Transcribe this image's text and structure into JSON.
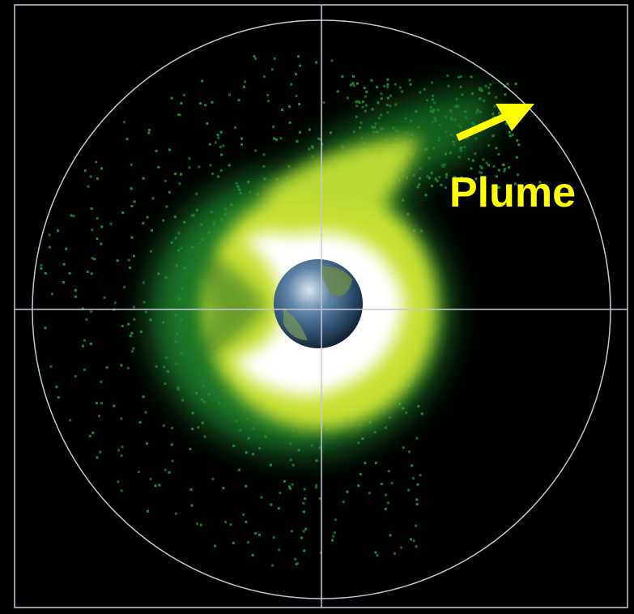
{
  "annotation": {
    "label": "Plume"
  }
}
